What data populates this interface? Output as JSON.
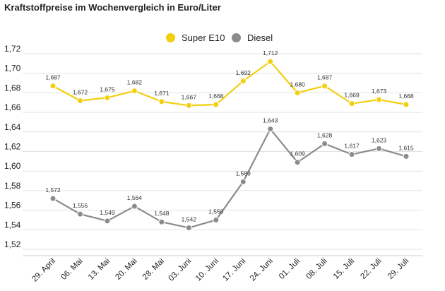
{
  "chart_data": {
    "type": "line",
    "title": "Kraftstoffpreise im Wochenvergleich in Euro/Liter",
    "categories": [
      "29. April",
      "06. Mai",
      "13. Mai",
      "20. Mai",
      "28. Mai",
      "03. Juni",
      "10. Juni",
      "17. Juni",
      "24. Juni",
      "01. Juli",
      "08. Juli",
      "15. Juli",
      "22. Juli",
      "29. Juli"
    ],
    "series": [
      {
        "name": "Super E10",
        "color": "#f2cf0f",
        "values": [
          1.687,
          1.672,
          1.675,
          1.682,
          1.671,
          1.667,
          1.668,
          1.692,
          1.712,
          1.68,
          1.687,
          1.669,
          1.673,
          1.668
        ],
        "labels": [
          "1,687",
          "1,672",
          "1,675",
          "1,682",
          "1,671",
          "1,667",
          "1,668",
          "1,692",
          "1,712",
          "1,680",
          "1,687",
          "1,669",
          "1,673",
          "1,668"
        ]
      },
      {
        "name": "Diesel",
        "color": "#8c8c8c",
        "values": [
          1.572,
          1.556,
          1.549,
          1.564,
          1.548,
          1.542,
          1.55,
          1.589,
          1.643,
          1.609,
          1.628,
          1.617,
          1.623,
          1.615
        ],
        "labels": [
          "1,572",
          "1,556",
          "1,549",
          "1,564",
          "1,548",
          "1,542",
          "1,550",
          "1,589",
          "1,643",
          "1,609",
          "1,628",
          "1,617",
          "1,623",
          "1,615"
        ]
      }
    ],
    "yticks": [
      1.52,
      1.54,
      1.56,
      1.58,
      1.6,
      1.62,
      1.64,
      1.66,
      1.68,
      1.7,
      1.72
    ],
    "ytick_labels": [
      "1,52",
      "1,54",
      "1,56",
      "1,58",
      "1,60",
      "1,62",
      "1,64",
      "1,66",
      "1,68",
      "1,70",
      "1,72"
    ],
    "ylim": [
      1.52,
      1.72
    ],
    "grid": true,
    "legend_position": "top-center"
  }
}
